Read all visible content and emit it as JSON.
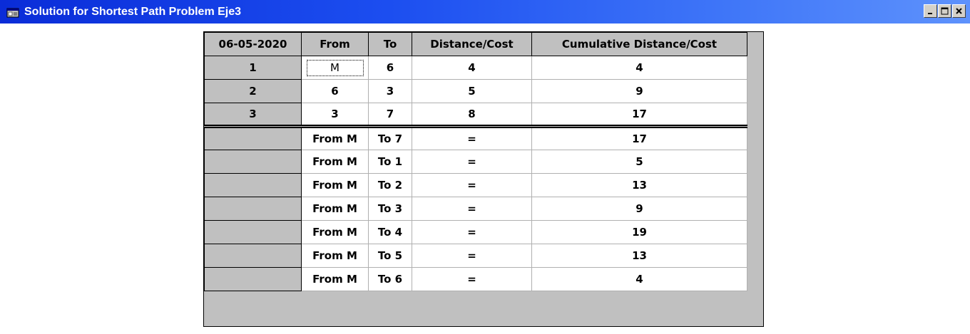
{
  "window": {
    "title": "Solution for Shortest Path Problem Eje3",
    "icon": "app-window-icon",
    "controls": [
      "minimize-icon",
      "maximize-icon",
      "close-icon"
    ]
  },
  "grid": {
    "headers": [
      "06-05-2020",
      "From",
      "To",
      "Distance/Cost",
      "Cumulative Distance/Cost"
    ],
    "path_rows": [
      {
        "step": "1",
        "from": "M",
        "to": "6",
        "cost": "4",
        "cumulative": "4"
      },
      {
        "step": "2",
        "from": "6",
        "to": "3",
        "cost": "5",
        "cumulative": "9"
      },
      {
        "step": "3",
        "from": "3",
        "to": "7",
        "cost": "8",
        "cumulative": "17"
      }
    ],
    "summary_rows": [
      {
        "step": "",
        "from": "From M",
        "to": "To 7",
        "cost": "=",
        "cumulative": "17"
      },
      {
        "step": "",
        "from": "From M",
        "to": "To 1",
        "cost": "=",
        "cumulative": "5"
      },
      {
        "step": "",
        "from": "From M",
        "to": "To 2",
        "cost": "=",
        "cumulative": "13"
      },
      {
        "step": "",
        "from": "From M",
        "to": "To 3",
        "cost": "=",
        "cumulative": "9"
      },
      {
        "step": "",
        "from": "From M",
        "to": "To 4",
        "cost": "=",
        "cumulative": "19"
      },
      {
        "step": "",
        "from": "From M",
        "to": "To 5",
        "cost": "=",
        "cumulative": "13"
      },
      {
        "step": "",
        "from": "From M",
        "to": "To 6",
        "cost": "=",
        "cumulative": "4"
      }
    ]
  }
}
